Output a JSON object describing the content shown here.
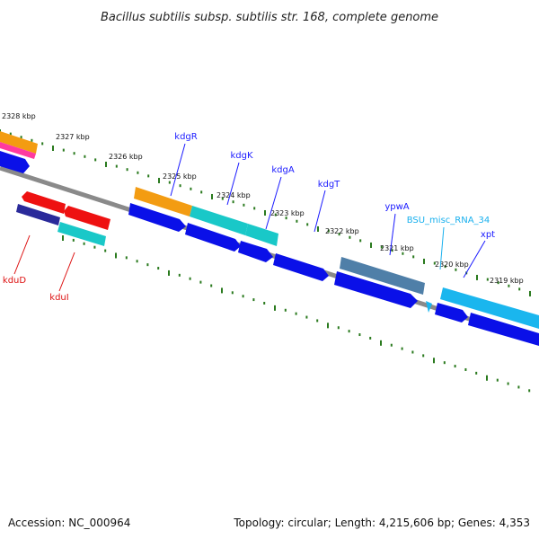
{
  "title": "Bacillus subtilis subsp. subtilis str. 168, complete genome",
  "footer": {
    "accession": "Accession: NC_000964",
    "stats": "Topology: circular; Length: 4,215,606 bp; Genes: 4,353"
  },
  "colors": {
    "backbone": "#8a8a8a",
    "tick": "#2a7a1e",
    "cds": "#0a10e8",
    "orange": "#f39c12",
    "pink": "#ff3aa0",
    "red": "#ee1111",
    "cyan": "#19c8c8",
    "steel": "#4f7fa8",
    "skyblue": "#1ab6ee",
    "navy": "#1a1a5a",
    "label_blue": "#1a1aff",
    "label_red": "#dd1111",
    "label_cyan": "#19b0ee"
  },
  "tick_labels": [
    "2328 kbp",
    "2327 kbp",
    "2326 kbp",
    "2325 kbp",
    "2324 kbp",
    "2323 kbp",
    "2322 kbp",
    "2321 kbp",
    "2320 kbp",
    "2319 kbp"
  ],
  "genes_outer": [
    {
      "label": "kdgR",
      "color": "label_blue"
    },
    {
      "label": "kdgK",
      "color": "label_blue"
    },
    {
      "label": "kdgA",
      "color": "label_blue"
    },
    {
      "label": "kdgT",
      "color": "label_blue"
    },
    {
      "label": "ypwA",
      "color": "label_blue"
    },
    {
      "label": "BSU_misc_RNA_34",
      "color": "label_cyan"
    },
    {
      "label": "xpt",
      "color": "label_blue"
    }
  ],
  "genes_inner": [
    {
      "label": "kduD",
      "color": "label_red"
    },
    {
      "label": "kduI",
      "color": "label_red"
    }
  ]
}
